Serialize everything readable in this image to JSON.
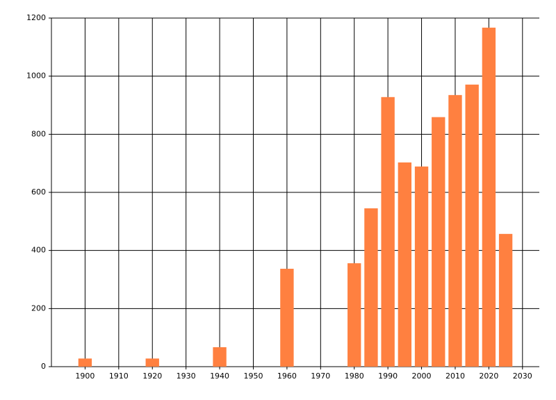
{
  "chart_data": {
    "type": "bar",
    "x": [
      1900,
      1920,
      1940,
      1960,
      1980,
      1985,
      1990,
      1995,
      2000,
      2005,
      2010,
      2015,
      2020,
      2025
    ],
    "values": [
      28,
      28,
      67,
      337,
      356,
      545,
      928,
      703,
      689,
      859,
      935,
      971,
      1167,
      457
    ],
    "color": "#ff8040",
    "xlim": [
      1890,
      2035
    ],
    "xticks": [
      1900,
      1910,
      1920,
      1930,
      1940,
      1950,
      1960,
      1970,
      1980,
      1990,
      2000,
      2010,
      2020,
      2030
    ],
    "ylim": [
      0,
      1200
    ],
    "yticks": [
      0,
      200,
      400,
      600,
      800,
      1000,
      1200
    ],
    "grid": true
  }
}
